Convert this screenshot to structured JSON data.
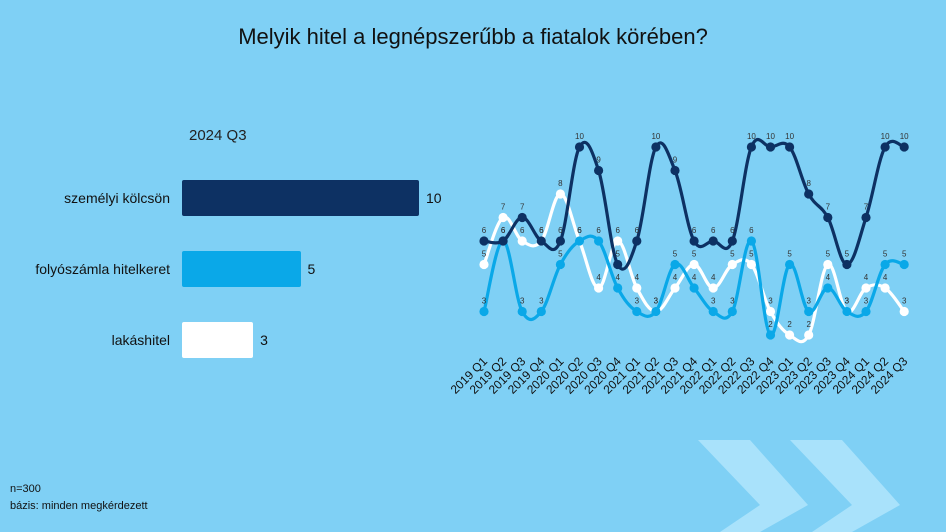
{
  "title": "Melyik hitel a legnépszerűbb a fiatalok körében?",
  "bar_subtitle": "2024 Q3",
  "footnote_n": "n=300",
  "footnote_base": "bázis: minden megkérdezett",
  "colors": {
    "background": "#7fd0f5",
    "personal_loan": "#0d3163",
    "overdraft": "#0aa8e8",
    "housing_loan": "#ffffff"
  },
  "chart_data": [
    {
      "type": "bar",
      "orientation": "horizontal",
      "title": "2024 Q3",
      "categories": [
        "személyi kölcsön",
        "folyószámla hitelkeret",
        "lakáshitel"
      ],
      "values": [
        10,
        5,
        3
      ],
      "xlim": [
        0,
        10
      ]
    },
    {
      "type": "line",
      "categories": [
        "2019 Q1",
        "2019 Q2",
        "2019 Q3",
        "2019 Q4",
        "2020 Q1",
        "2020 Q2",
        "2020 Q3",
        "2020 Q4",
        "2021 Q1",
        "2021 Q2",
        "2021 Q3",
        "2021 Q4",
        "2022 Q1",
        "2022 Q2",
        "2022 Q3",
        "2022 Q4",
        "2023 Q1",
        "2023 Q2",
        "2023 Q3",
        "2023 Q4",
        "2024 Q1",
        "2024 Q2",
        "2024 Q3"
      ],
      "series": [
        {
          "name": "személyi kölcsön",
          "values": [
            6,
            6,
            7,
            6,
            6,
            10,
            9,
            5,
            6,
            10,
            9,
            6,
            6,
            6,
            10,
            10,
            10,
            8,
            7,
            5,
            7,
            10,
            10
          ]
        },
        {
          "name": "folyószámla hitelkeret",
          "values": [
            3,
            6,
            3,
            3,
            5,
            6,
            6,
            4,
            3,
            3,
            5,
            4,
            3,
            3,
            6,
            2,
            5,
            3,
            4,
            3,
            3,
            5,
            5
          ]
        },
        {
          "name": "lakáshitel",
          "values": [
            5,
            7,
            6,
            6,
            8,
            6,
            4,
            6,
            4,
            3,
            4,
            5,
            4,
            5,
            5,
            3,
            2,
            2,
            5,
            3,
            4,
            4,
            3
          ]
        }
      ],
      "ylim": [
        0,
        10
      ],
      "grid": false,
      "legend": "none"
    }
  ]
}
